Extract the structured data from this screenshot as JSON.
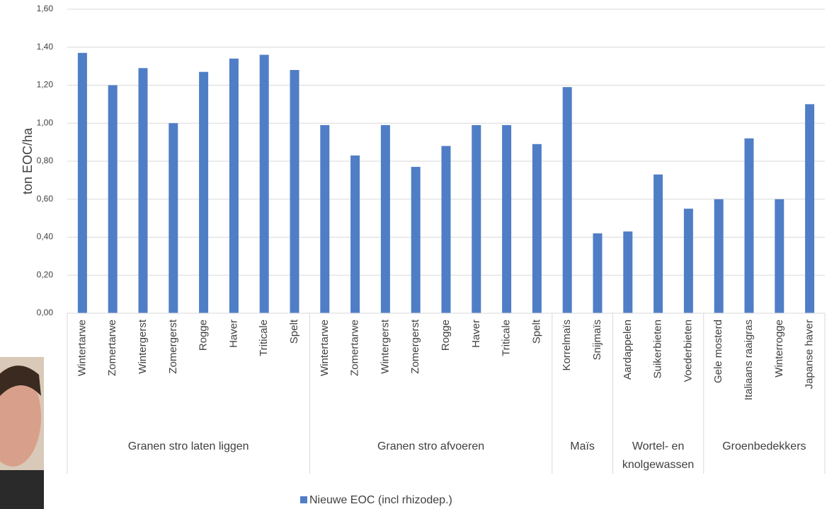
{
  "chart_data": {
    "type": "bar",
    "y_label": "ton EOC/ha",
    "groups": [
      {
        "name": "Granen stro laten liggen",
        "categories": [
          "Wintertarwe",
          "Zomertarwe",
          "Wintergerst",
          "Zomergerst",
          "Rogge",
          "Haver",
          "Triticale",
          "Spelt"
        ]
      },
      {
        "name": "Granen stro afvoeren",
        "categories": [
          "Wintertarwe",
          "Zomertarwe",
          "Wintergerst",
          "Zomergerst",
          "Rogge",
          "Haver",
          "Triticale",
          "Spelt"
        ]
      },
      {
        "name": "Maïs",
        "categories": [
          "Korrelmaïs",
          "Snijmaïs"
        ]
      },
      {
        "name": "Wortel- en knolgewassen",
        "categories": [
          "Aardappelen",
          "Suikerbieten",
          "Voederbieten"
        ]
      },
      {
        "name": "Groenbedekkers",
        "categories": [
          "Gele mosterd",
          "Italiaans raaigras",
          "Winterrogge",
          "Japanse haver"
        ]
      }
    ],
    "series": [
      {
        "name": "Nieuwe EOC (incl rhizodep.)",
        "color": "#4f7ec6",
        "values": [
          1.37,
          1.2,
          1.29,
          1.0,
          1.27,
          1.34,
          1.36,
          1.28,
          0.99,
          0.83,
          0.99,
          0.77,
          0.88,
          0.99,
          0.99,
          0.89,
          1.19,
          0.42,
          0.43,
          0.73,
          0.55,
          0.6,
          0.92,
          0.6,
          1.1
        ]
      }
    ],
    "ylim": [
      0,
      1.6
    ],
    "yticks": [
      {
        "value": 0,
        "label": "0,00"
      },
      {
        "value": 0.2,
        "label": "0,20"
      },
      {
        "value": 0.4,
        "label": "0,40"
      },
      {
        "value": 0.6,
        "label": "0,60"
      },
      {
        "value": 0.8,
        "label": "0,80"
      },
      {
        "value": 1.0,
        "label": "1,00"
      },
      {
        "value": 1.2,
        "label": "1,20"
      },
      {
        "value": 1.4,
        "label": "1,40"
      },
      {
        "value": 1.6,
        "label": "1,60"
      }
    ],
    "grid": true
  }
}
